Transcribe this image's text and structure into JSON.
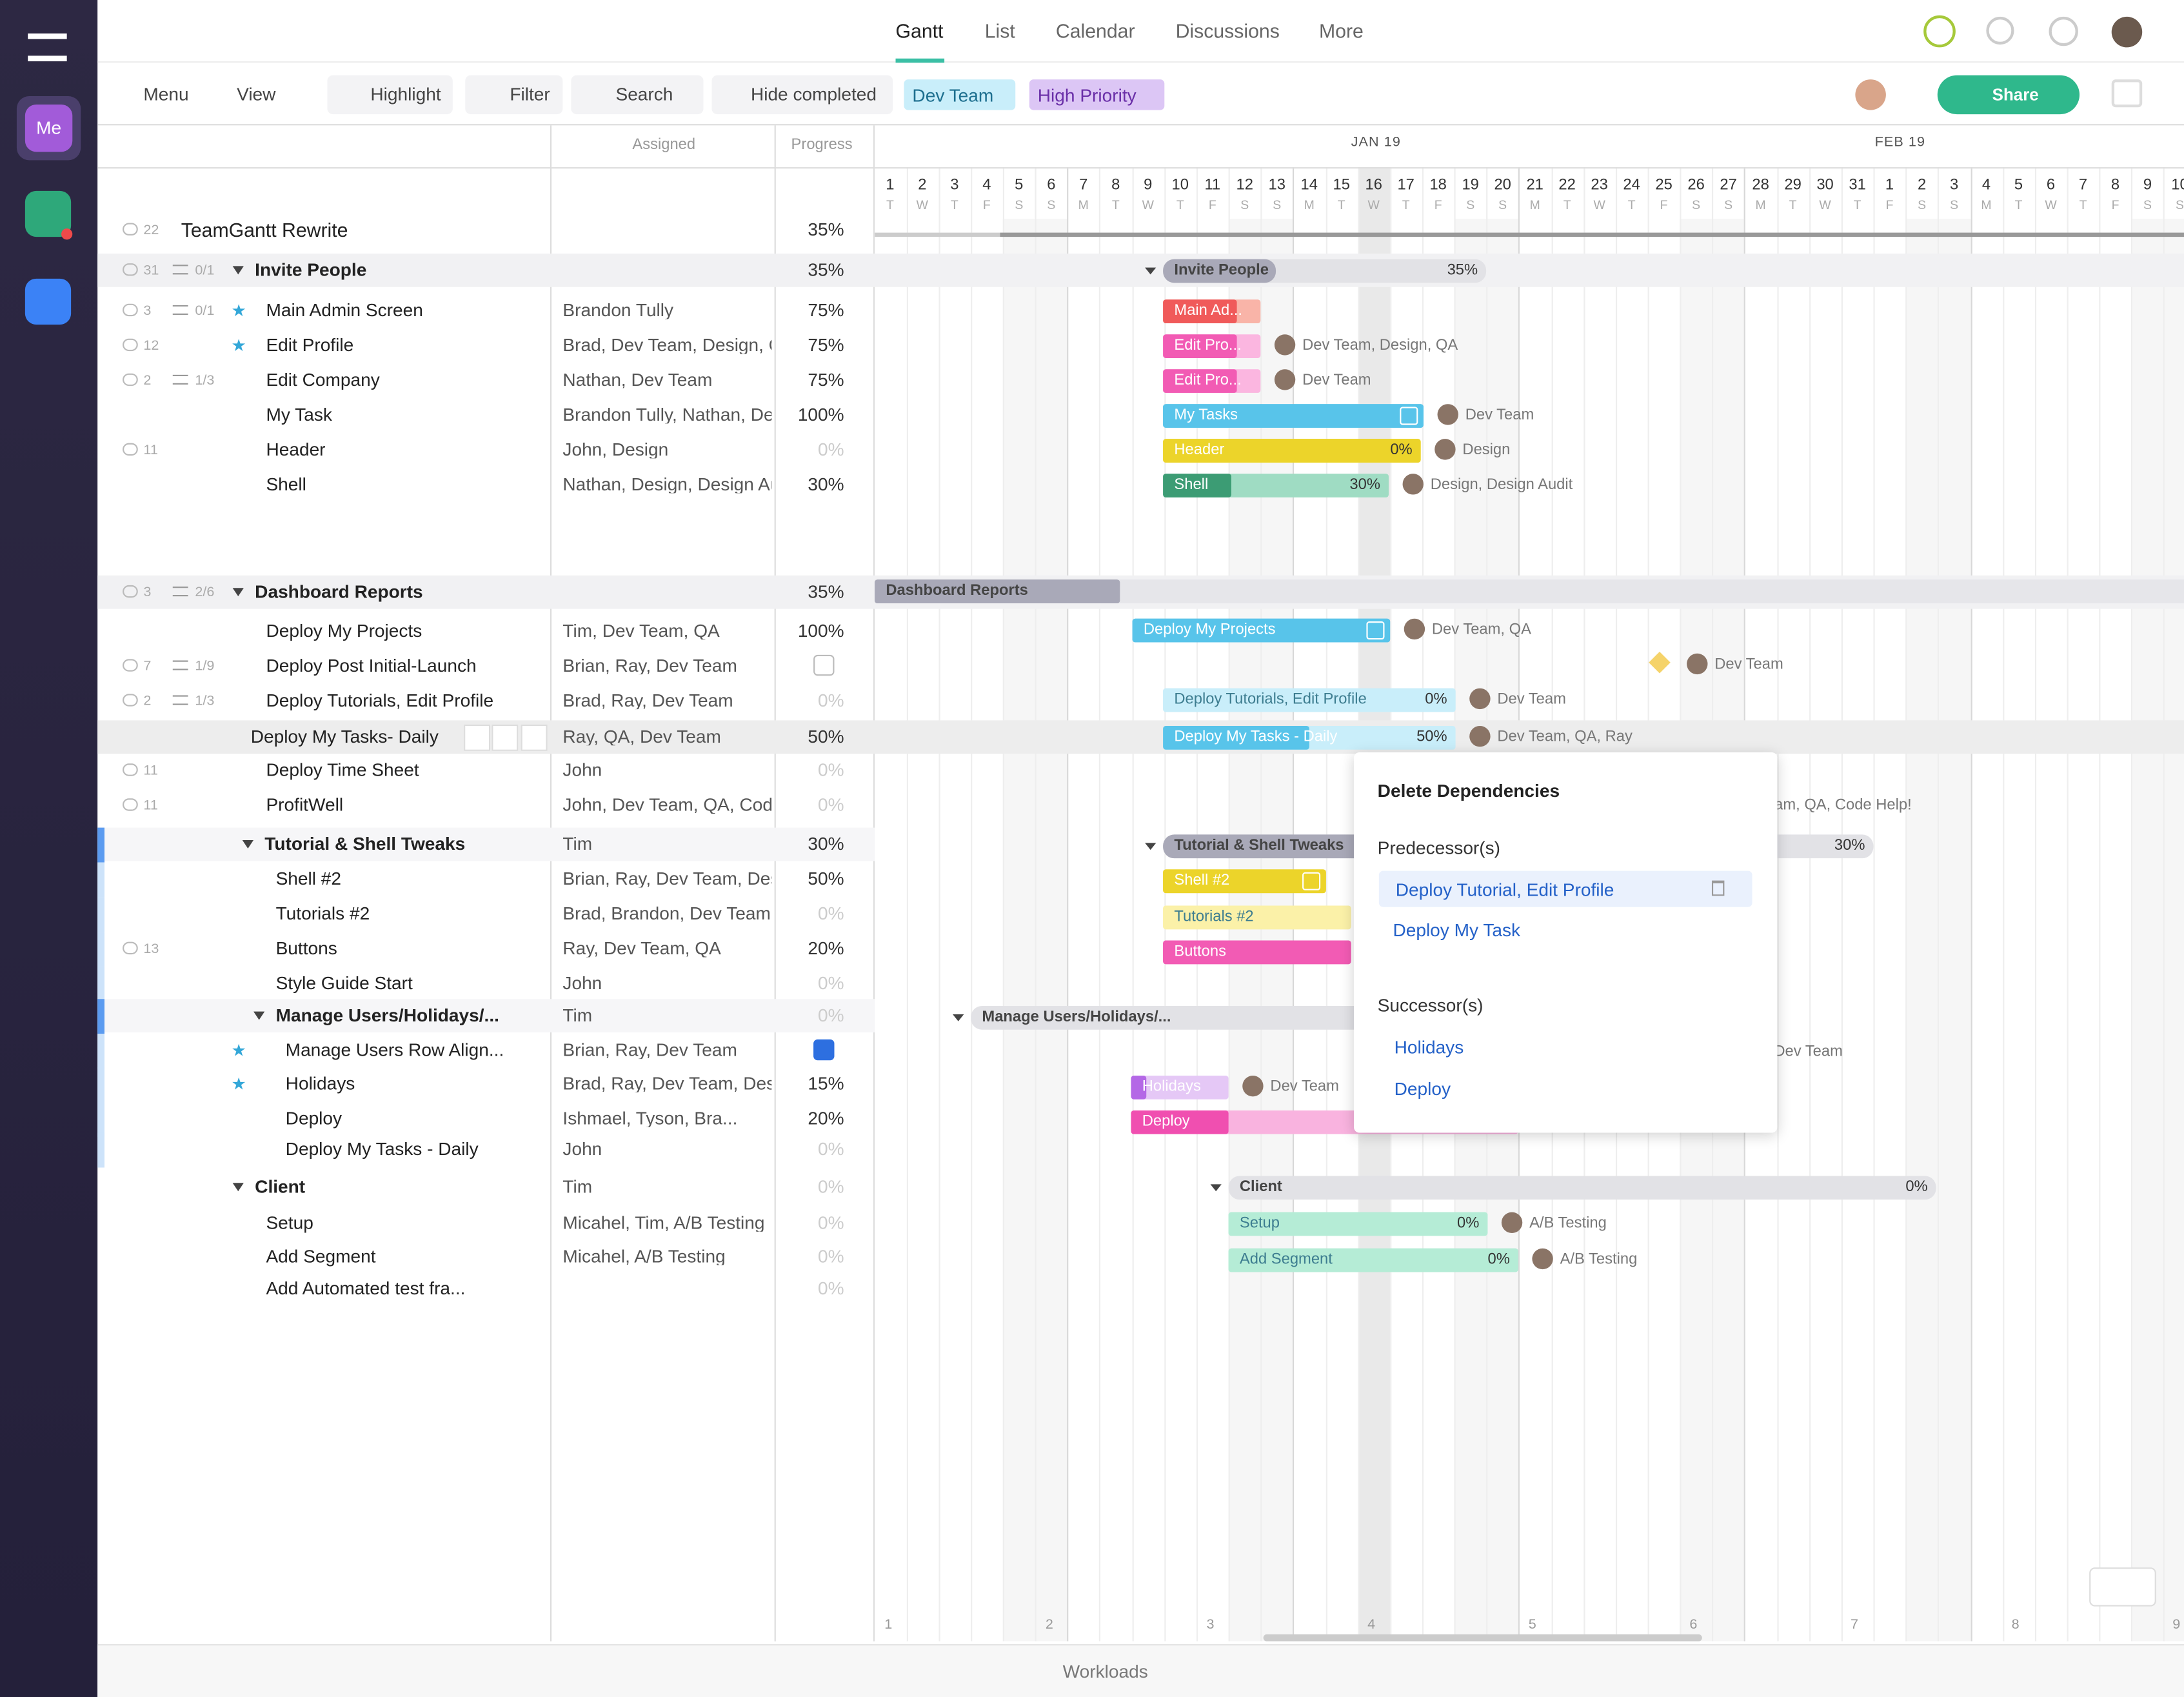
{
  "nav": {
    "tabs": [
      "Gantt",
      "List",
      "Calendar",
      "Discussions",
      "More"
    ]
  },
  "sidebar": {
    "me": "Me"
  },
  "toolbar": {
    "menu": "Menu",
    "view": "View",
    "highlight": "Highlight",
    "filter": "Filter",
    "search": "Search",
    "hide_completed": "Hide completed",
    "tags": [
      "Dev Team",
      "High Priority"
    ],
    "share": "Share"
  },
  "columns": {
    "assigned": "Assigned",
    "progress": "Progress"
  },
  "timeline": {
    "months": [
      "JAN 19",
      "FEB 19"
    ],
    "days": [
      1,
      2,
      3,
      4,
      5,
      6,
      7,
      8,
      9,
      10,
      11,
      12,
      13,
      14,
      15,
      16,
      17,
      18,
      19,
      20,
      21,
      22,
      23,
      24,
      25,
      26,
      27,
      28,
      29,
      30,
      31,
      1,
      2,
      3,
      4,
      5,
      6,
      7,
      8,
      9,
      10
    ],
    "weekdays": [
      "T",
      "W",
      "T",
      "F",
      "S",
      "S",
      "M",
      "T",
      "W",
      "T",
      "F",
      "S",
      "S",
      "M",
      "T",
      "W",
      "T",
      "F",
      "S",
      "S",
      "M",
      "T",
      "W",
      "T",
      "F",
      "S",
      "S",
      "M",
      "T",
      "W",
      "T",
      "F",
      "S",
      "S",
      "M",
      "T",
      "W",
      "T",
      "F",
      "S",
      "S"
    ],
    "weeks": [
      1,
      2,
      3,
      4,
      5,
      6,
      7,
      8,
      9
    ]
  },
  "rows": [
    {
      "kind": "project",
      "name": "TeamGantt Rewrite",
      "progress": "35%",
      "comments": 22
    },
    {
      "kind": "group",
      "name": "Invite People",
      "progress": "35%",
      "comments": 31,
      "checklist": "0/1"
    },
    {
      "kind": "task",
      "name": "Main Admin Screen",
      "assigned": "Brandon Tully",
      "progress": "75%",
      "comments": 3,
      "checklist": "0/1",
      "star": true
    },
    {
      "kind": "task",
      "name": "Edit Profile",
      "assigned": "Brad, Dev Team, Design, QA",
      "progress": "75%",
      "comments": 12,
      "star": true
    },
    {
      "kind": "task",
      "name": "Edit Company",
      "assigned": "Nathan, Dev Team",
      "progress": "75%",
      "comments": 2,
      "checklist": "1/3"
    },
    {
      "kind": "task",
      "name": "My Task",
      "assigned": "Brandon Tully, Nathan, Dev Team",
      "progress": "100%"
    },
    {
      "kind": "task",
      "name": "Header",
      "assigned": "John, Design",
      "progress": "0%",
      "comments": 11
    },
    {
      "kind": "task",
      "name": "Shell",
      "assigned": "Nathan, Design, Design Audit",
      "progress": "30%"
    },
    {
      "kind": "group",
      "name": "Dashboard Reports",
      "progress": "35%",
      "comments": 3,
      "checklist": "2/6"
    },
    {
      "kind": "task",
      "name": "Deploy My Projects",
      "assigned": "Tim, Dev Team, QA",
      "progress": "100%"
    },
    {
      "kind": "task",
      "name": "Deploy Post Initial-Launch",
      "assigned": "Brian, Ray, Dev Team",
      "check": false,
      "comments": 7,
      "checklist": "1/9"
    },
    {
      "kind": "task",
      "name": "Deploy Tutorials, Edit Profile",
      "assigned": "Brad, Ray, Dev Team",
      "progress": "0%",
      "comments": 2,
      "checklist": "1/3"
    },
    {
      "kind": "selected",
      "name": "Deploy My Tasks- Daily",
      "assigned": "Ray, QA, Dev Team",
      "progress": "50%"
    },
    {
      "kind": "task",
      "name": "Deploy Time Sheet",
      "assigned": "John",
      "progress": "0%",
      "comments": 11
    },
    {
      "kind": "task",
      "name": "ProfitWell",
      "assigned": "John, Dev Team, QA, Code Help!",
      "progress": "0%",
      "comments": 11
    },
    {
      "kind": "subgroup",
      "name": "Tutorial & Shell Tweaks",
      "assigned": "Tim",
      "progress": "30%"
    },
    {
      "kind": "subtask",
      "name": "Shell #2",
      "assigned": "Brian, Ray, Dev Team, Design",
      "progress": "50%"
    },
    {
      "kind": "subtask",
      "name": "Tutorials #2",
      "assigned": "Brad, Brandon, Dev Team, QA",
      "progress": "0%"
    },
    {
      "kind": "subtask",
      "name": "Buttons",
      "assigned": "Ray, Dev Team, QA",
      "progress": "20%",
      "comments": 13
    },
    {
      "kind": "subtask",
      "name": "Style Guide Start",
      "assigned": "John",
      "progress": "0%"
    },
    {
      "kind": "subgroup2",
      "name": "Manage Users/Holidays/...",
      "assigned": "Tim",
      "progress": "0%"
    },
    {
      "kind": "subtask2",
      "name": "Manage Users Row Align...",
      "assigned": "Brian, Ray, Dev Team",
      "check": true,
      "star": true
    },
    {
      "kind": "subtask2",
      "name": "Holidays",
      "assigned": "Brad, Ray, Dev Team, Design",
      "progress": "15%",
      "star": true
    },
    {
      "kind": "subtask2",
      "name": "Deploy",
      "assigned": "Ishmael, Tyson, Bra...",
      "progress": "20%"
    },
    {
      "kind": "subtask2",
      "name": "Deploy My Tasks - Daily",
      "assigned": "John",
      "progress": "0%"
    },
    {
      "kind": "group",
      "name": "Client",
      "assigned": "Tim",
      "progress": "0%"
    },
    {
      "kind": "task",
      "name": "Setup",
      "assigned": "Micahel, Tim, A/B Testing",
      "progress": "0%"
    },
    {
      "kind": "task",
      "name": "Add Segment",
      "assigned": "Micahel, A/B Testing",
      "progress": "0%"
    },
    {
      "kind": "task",
      "name": "Add Automated test fra...",
      "progress": "0%"
    }
  ],
  "bars": [
    {
      "label": "Invite People",
      "percent": "35%"
    },
    {
      "label": "Main Ad..."
    },
    {
      "label": "Edit Pro...",
      "people": "Dev Team, Design, QA"
    },
    {
      "label": "Edit Pro...",
      "people": "Dev Team"
    },
    {
      "label": "My Tasks",
      "people": "Dev Team"
    },
    {
      "label": "Header",
      "percent": "0%",
      "people": "Design"
    },
    {
      "label": "Shell",
      "percent": "30%",
      "people": "Design, Design Audit"
    },
    {
      "label": "Dashboard Reports"
    },
    {
      "label": "Deploy My Projects",
      "people": "Dev Team, QA"
    },
    {
      "people": "Dev Team"
    },
    {
      "label": "Deploy Tutorials, Edit Profile",
      "percent": "0%",
      "people": "Dev Team"
    },
    {
      "label": "Deploy My Tasks - Daily",
      "percent": "50%",
      "people": "Dev Team, QA, Ray"
    },
    {
      "people": "John, Dev Team, QA, Code Help!"
    },
    {
      "label": "Tutorial & Shell Tweaks",
      "percent": "30%"
    },
    {
      "label": "Shell #2"
    },
    {
      "label": "Tutorials #2"
    },
    {
      "label": "Buttons"
    },
    {
      "label": "Manage Users/Holidays/..."
    },
    {
      "people": "Brian, Ray, Dev Team"
    },
    {
      "label": "Holidays",
      "people": "Dev Team"
    },
    {
      "label": "Deploy"
    },
    {
      "label": "Client",
      "percent": "0%"
    },
    {
      "label": "Setup",
      "percent": "0%",
      "people": "A/B Testing"
    },
    {
      "label": "Add Segment",
      "percent": "0%",
      "people": "A/B Testing"
    }
  ],
  "popup": {
    "title": "Delete Dependencies",
    "predecessors_label": "Predecessor(s)",
    "predecessors": [
      "Deploy Tutorial, Edit Profile",
      "Deploy My Task"
    ],
    "successors_label": "Successor(s)",
    "successors": [
      "Holidays",
      "Deploy"
    ]
  },
  "footer": {
    "workloads": "Workloads"
  }
}
